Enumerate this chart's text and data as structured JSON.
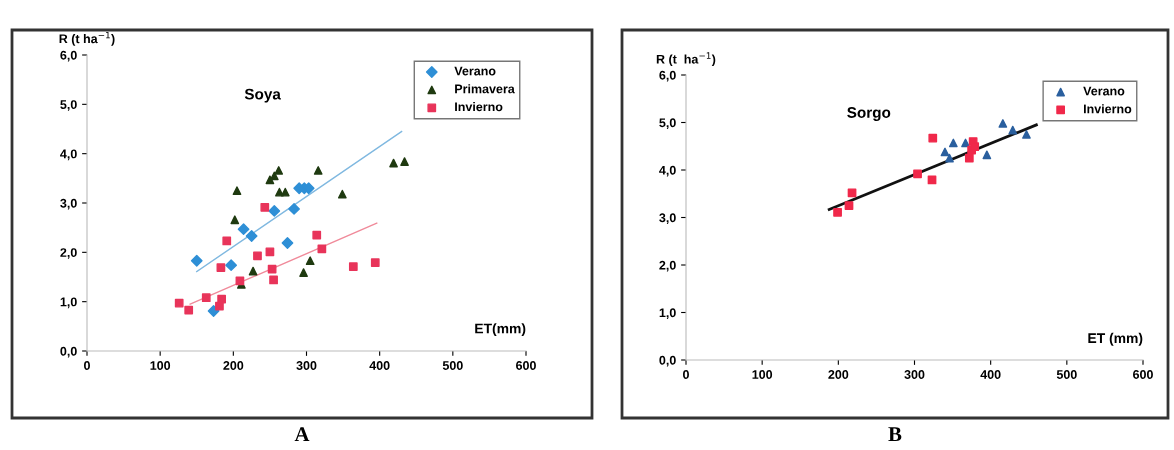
{
  "chart_data": [
    {
      "type": "scatter",
      "title": "Soya",
      "ylabel": "R (t ha$^{−1}$)",
      "xlabel": "ET(mm)",
      "annotations": [
        "A"
      ],
      "xlim": [
        0,
        600
      ],
      "xticks": [
        0,
        100,
        200,
        300,
        400,
        500,
        600
      ],
      "ylim": [
        0,
        6
      ],
      "yticks": [
        {
          "value": 0,
          "label": "0,0"
        },
        {
          "value": 1,
          "label": "1,0"
        },
        {
          "value": 2,
          "label": "2,0"
        },
        {
          "value": 3,
          "label": "3,0"
        },
        {
          "value": 4,
          "label": "4,0"
        },
        {
          "value": 5,
          "label": "5,0"
        },
        {
          "value": 6,
          "label": "6,0"
        }
      ],
      "grid": false,
      "legend": "top right",
      "series": [
        {
          "name": "Verano",
          "color": "#2e8fd6",
          "marker": "diamond",
          "x": [
            150,
            173,
            197,
            214,
            225,
            256,
            274,
            283,
            290,
            297,
            303
          ],
          "values": [
            1.83,
            0.81,
            1.74,
            2.47,
            2.33,
            2.84,
            2.19,
            2.88,
            3.3,
            3.3,
            3.3
          ]
        },
        {
          "name": "Primavera",
          "color": "#1f3a10",
          "marker": "triangle",
          "x": [
            205,
            202,
            250,
            256,
            262,
            263,
            271,
            316,
            349,
            419,
            434,
            211,
            227,
            296,
            305
          ],
          "values": [
            3.25,
            2.66,
            3.47,
            3.55,
            3.66,
            3.22,
            3.22,
            3.66,
            3.18,
            3.81,
            3.84,
            1.35,
            1.62,
            1.59,
            1.83
          ]
        },
        {
          "name": "Invierno",
          "color": "#e8345a",
          "marker": "square",
          "x": [
            126,
            139,
            163,
            184,
            181,
            183,
            191,
            209,
            233,
            243,
            250,
            253,
            255,
            314,
            321,
            364,
            394
          ],
          "values": [
            0.97,
            0.83,
            1.08,
            1.05,
            0.91,
            1.69,
            2.23,
            1.42,
            1.93,
            2.91,
            2.01,
            1.66,
            1.44,
            2.35,
            2.07,
            1.71,
            1.79
          ]
        },
        {
          "type": "line",
          "color": "#7fb8e0",
          "x": [
            150,
            430
          ],
          "values": [
            1.61,
            4.45
          ]
        },
        {
          "type": "line",
          "color": "#f08a9a",
          "x": [
            141,
            396
          ],
          "values": [
            0.95,
            2.59
          ]
        }
      ]
    },
    {
      "type": "scatter",
      "title": "Sorgo",
      "ylabel": "R (t  ha$^{−1}$)",
      "xlabel": "ET (mm)",
      "annotations": [
        "B"
      ],
      "xlim": [
        0,
        600
      ],
      "xticks": [
        0,
        100,
        200,
        300,
        400,
        500,
        600
      ],
      "ylim": [
        0,
        6
      ],
      "yticks": [
        {
          "value": 0,
          "label": "0,0"
        },
        {
          "value": 1,
          "label": "1,0"
        },
        {
          "value": 2,
          "label": "2,0"
        },
        {
          "value": 3,
          "label": "3,0"
        },
        {
          "value": 4,
          "label": "4,0"
        },
        {
          "value": 5,
          "label": "5,0"
        },
        {
          "value": 6,
          "label": "6,0"
        }
      ],
      "grid": false,
      "legend": "top right",
      "series": [
        {
          "name": "Verano",
          "color": "#2a5f9e",
          "marker": "triangle",
          "x": [
            351,
            340,
            346,
            367,
            395,
            416,
            429,
            447
          ],
          "values": [
            4.57,
            4.38,
            4.25,
            4.57,
            4.32,
            4.98,
            4.84,
            4.75
          ]
        },
        {
          "name": "Invierno",
          "color": "#f0284a",
          "marker": "square",
          "x": [
            199,
            214,
            218,
            304,
            323,
            324,
            377,
            375,
            372,
            379
          ],
          "values": [
            3.11,
            3.25,
            3.52,
            3.92,
            3.79,
            4.67,
            4.6,
            4.42,
            4.25,
            4.49
          ]
        },
        {
          "type": "line",
          "color": "#111111",
          "x": [
            188,
            460
          ],
          "values": [
            3.17,
            4.95
          ]
        }
      ]
    }
  ]
}
